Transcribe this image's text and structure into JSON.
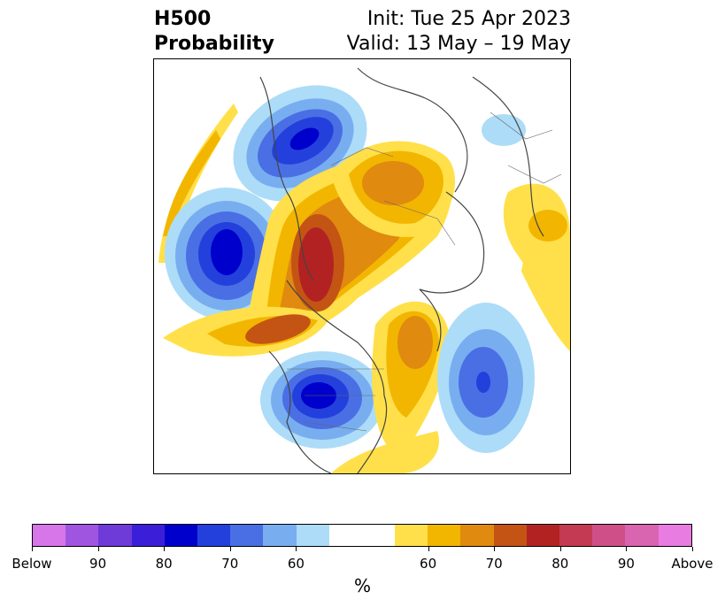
{
  "title": {
    "main_line1": "H500",
    "main_line2": "Probability",
    "init": "Init: Tue 25 Apr 2023",
    "valid": "Valid: 13 May – 19 May"
  },
  "colorbar": {
    "unit": "%",
    "colors": [
      "#d676e8",
      "#a055e0",
      "#6e3ad8",
      "#3b1fd8",
      "#0000cc",
      "#2340dc",
      "#4a6fe4",
      "#78aef0",
      "#acdcf8",
      "#ffffff",
      "#ffffff",
      "#ffe04a",
      "#f2b600",
      "#e08a10",
      "#c45414",
      "#b22222",
      "#c43a52",
      "#cf5088",
      "#d964b0",
      "#e87ce0"
    ],
    "tick_labels": [
      "Below",
      "90",
      "80",
      "70",
      "60",
      "60",
      "70",
      "80",
      "90",
      "Above"
    ]
  },
  "map": {
    "features": [
      {
        "name": "blue-anomaly-pacific",
        "category": "below",
        "level": "80+"
      },
      {
        "name": "blue-anomaly-west-conus",
        "category": "below",
        "level": "80+"
      },
      {
        "name": "blue-anomaly-atlantic",
        "category": "below",
        "level": "70"
      },
      {
        "name": "blue-anomaly-east-siberia",
        "category": "below",
        "level": "80+"
      },
      {
        "name": "red-anomaly-alaska-arctic",
        "category": "above",
        "level": "80"
      },
      {
        "name": "orange-anomaly-east-asia",
        "category": "above",
        "level": "70"
      },
      {
        "name": "orange-anomaly-canada-east",
        "category": "above",
        "level": "70"
      },
      {
        "name": "yellow-anomaly-europe",
        "category": "above",
        "level": "60"
      }
    ]
  }
}
